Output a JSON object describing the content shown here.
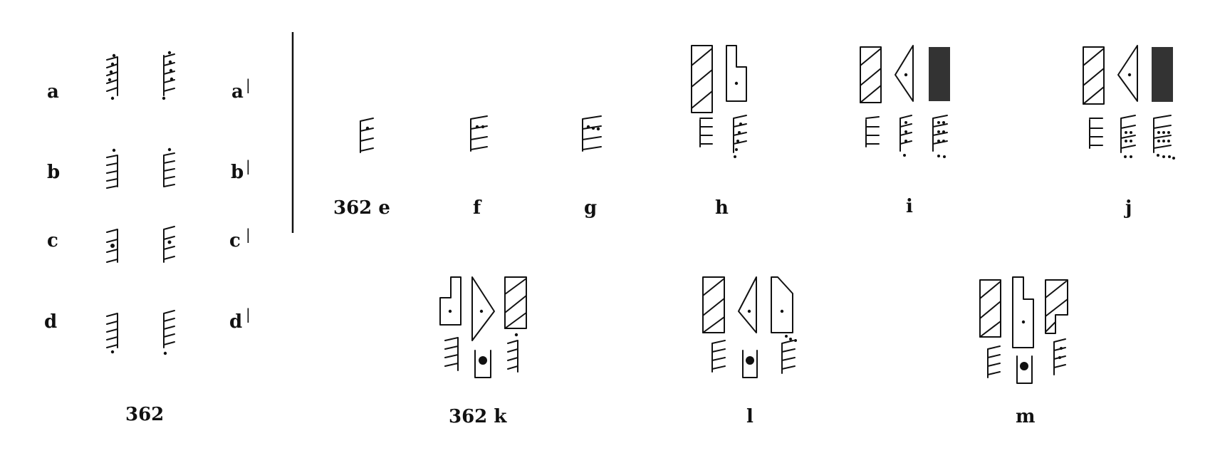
{
  "left_panel": {
    "rows": [
      {
        "left": "a",
        "right": "a",
        "right_mark": "|"
      },
      {
        "left": "b",
        "right": "b",
        "right_mark": "|"
      },
      {
        "left": "c",
        "right": "c",
        "right_mark": "|"
      },
      {
        "left": "d",
        "right": "d",
        "right_mark": "|"
      }
    ],
    "caption": "362"
  },
  "top_captions": [
    "362 e",
    "f",
    "g",
    "h",
    "i",
    "j"
  ],
  "bottom_captions": [
    "362 k",
    "l",
    "m"
  ],
  "colors": {
    "ink": "#111111",
    "fill_dark": "#333333",
    "paper": "#ffffff"
  },
  "glyph_kinds": [
    "stroke-glyph",
    "hatched-bar",
    "triangle-glyph",
    "notched-bar",
    "dark-bar",
    "frame-glyph"
  ]
}
